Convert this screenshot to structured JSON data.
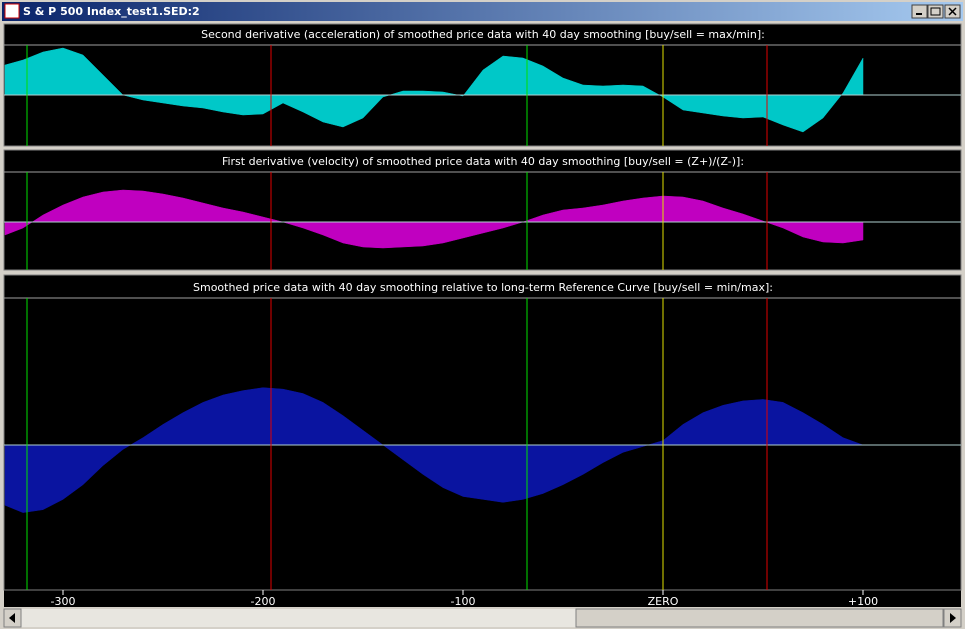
{
  "window": {
    "title": "S & P 500 Index_test1.SED:2"
  },
  "x_axis": {
    "xlim": [
      -329,
      148
    ],
    "xticks": [
      -300,
      -200,
      -100,
      {
        "value": 0,
        "label": "ZERO"
      },
      {
        "value": 100,
        "label": "+100"
      }
    ]
  },
  "markers": [
    {
      "x": -318,
      "color": "#00e000"
    },
    {
      "x": -196,
      "color": "#e00000"
    },
    {
      "x": -68,
      "color": "#00e000"
    },
    {
      "x": 0,
      "color": "#e0e000"
    },
    {
      "x": 52,
      "color": "#e00000"
    }
  ],
  "chart_data": [
    {
      "type": "area",
      "title": "Second derivative (acceleration) of smoothed price data with 40 day smoothing [buy/sell = max/min]:",
      "color": "#00c8c8",
      "ylim": [
        -1,
        1
      ],
      "x": [
        -329,
        -320,
        -310,
        -300,
        -290,
        -280,
        -270,
        -260,
        -250,
        -240,
        -230,
        -220,
        -210,
        -200,
        -190,
        -180,
        -170,
        -160,
        -150,
        -140,
        -130,
        -120,
        -110,
        -100,
        -90,
        -80,
        -70,
        -60,
        -50,
        -40,
        -30,
        -20,
        -10,
        0,
        10,
        20,
        30,
        40,
        50,
        60,
        70,
        80,
        90,
        100
      ],
      "values": [
        0.6,
        0.7,
        0.86,
        0.94,
        0.8,
        0.4,
        0,
        -0.1,
        -0.16,
        -0.22,
        -0.26,
        -0.34,
        -0.4,
        -0.38,
        -0.16,
        -0.34,
        -0.54,
        -0.64,
        -0.46,
        -0.04,
        0.08,
        0.08,
        0.06,
        -0.02,
        0.5,
        0.78,
        0.74,
        0.58,
        0.34,
        0.2,
        0.18,
        0.2,
        0.18,
        -0.04,
        -0.3,
        -0.36,
        -0.42,
        -0.46,
        -0.44,
        -0.6,
        -0.74,
        -0.46,
        0.04,
        0.74
      ]
    },
    {
      "type": "area",
      "title": "First derivative (velocity) of smoothed price data with 40 day smoothing [buy/sell = (Z+)/(Z-)]:",
      "color": "#c000c0",
      "ylim": [
        -1,
        1
      ],
      "x": [
        -329,
        -320,
        -310,
        -300,
        -290,
        -280,
        -270,
        -260,
        -250,
        -240,
        -230,
        -220,
        -210,
        -200,
        -190,
        -180,
        -170,
        -160,
        -150,
        -140,
        -130,
        -120,
        -110,
        -100,
        -90,
        -80,
        -70,
        -60,
        -50,
        -40,
        -30,
        -20,
        -10,
        0,
        10,
        20,
        30,
        40,
        50,
        60,
        70,
        80,
        90,
        100
      ],
      "values": [
        -0.26,
        -0.12,
        0.14,
        0.34,
        0.5,
        0.6,
        0.64,
        0.62,
        0.56,
        0.48,
        0.38,
        0.28,
        0.2,
        0.1,
        0,
        -0.12,
        -0.26,
        -0.42,
        -0.5,
        -0.52,
        -0.5,
        -0.48,
        -0.42,
        -0.32,
        -0.22,
        -0.12,
        0,
        0.14,
        0.24,
        0.28,
        0.34,
        0.42,
        0.48,
        0.52,
        0.5,
        0.42,
        0.28,
        0.16,
        0.02,
        -0.12,
        -0.3,
        -0.4,
        -0.42,
        -0.36
      ]
    },
    {
      "type": "area",
      "title": "Smoothed price data with 40 day smoothing relative to long-term Reference Curve [buy/sell = min/max]:",
      "color": "#0a14a0",
      "ylim": [
        -1,
        1
      ],
      "x": [
        -329,
        -320,
        -310,
        -300,
        -290,
        -280,
        -270,
        -260,
        -250,
        -240,
        -230,
        -220,
        -210,
        -200,
        -190,
        -180,
        -170,
        -160,
        -150,
        -140,
        -130,
        -120,
        -110,
        -100,
        -90,
        -80,
        -70,
        -60,
        -50,
        -40,
        -30,
        -20,
        -10,
        0,
        10,
        20,
        30,
        40,
        50,
        60,
        70,
        80,
        90,
        100
      ],
      "values": [
        -0.41,
        -0.46,
        -0.44,
        -0.37,
        -0.27,
        -0.14,
        -0.03,
        0.05,
        0.14,
        0.22,
        0.29,
        0.34,
        0.37,
        0.39,
        0.38,
        0.35,
        0.29,
        0.2,
        0.1,
        0,
        -0.1,
        -0.2,
        -0.29,
        -0.35,
        -0.37,
        -0.39,
        -0.37,
        -0.33,
        -0.27,
        -0.2,
        -0.12,
        -0.05,
        -0.01,
        0.03,
        0.14,
        0.22,
        0.27,
        0.3,
        0.31,
        0.29,
        0.22,
        0.14,
        0.05,
        0
      ]
    }
  ]
}
